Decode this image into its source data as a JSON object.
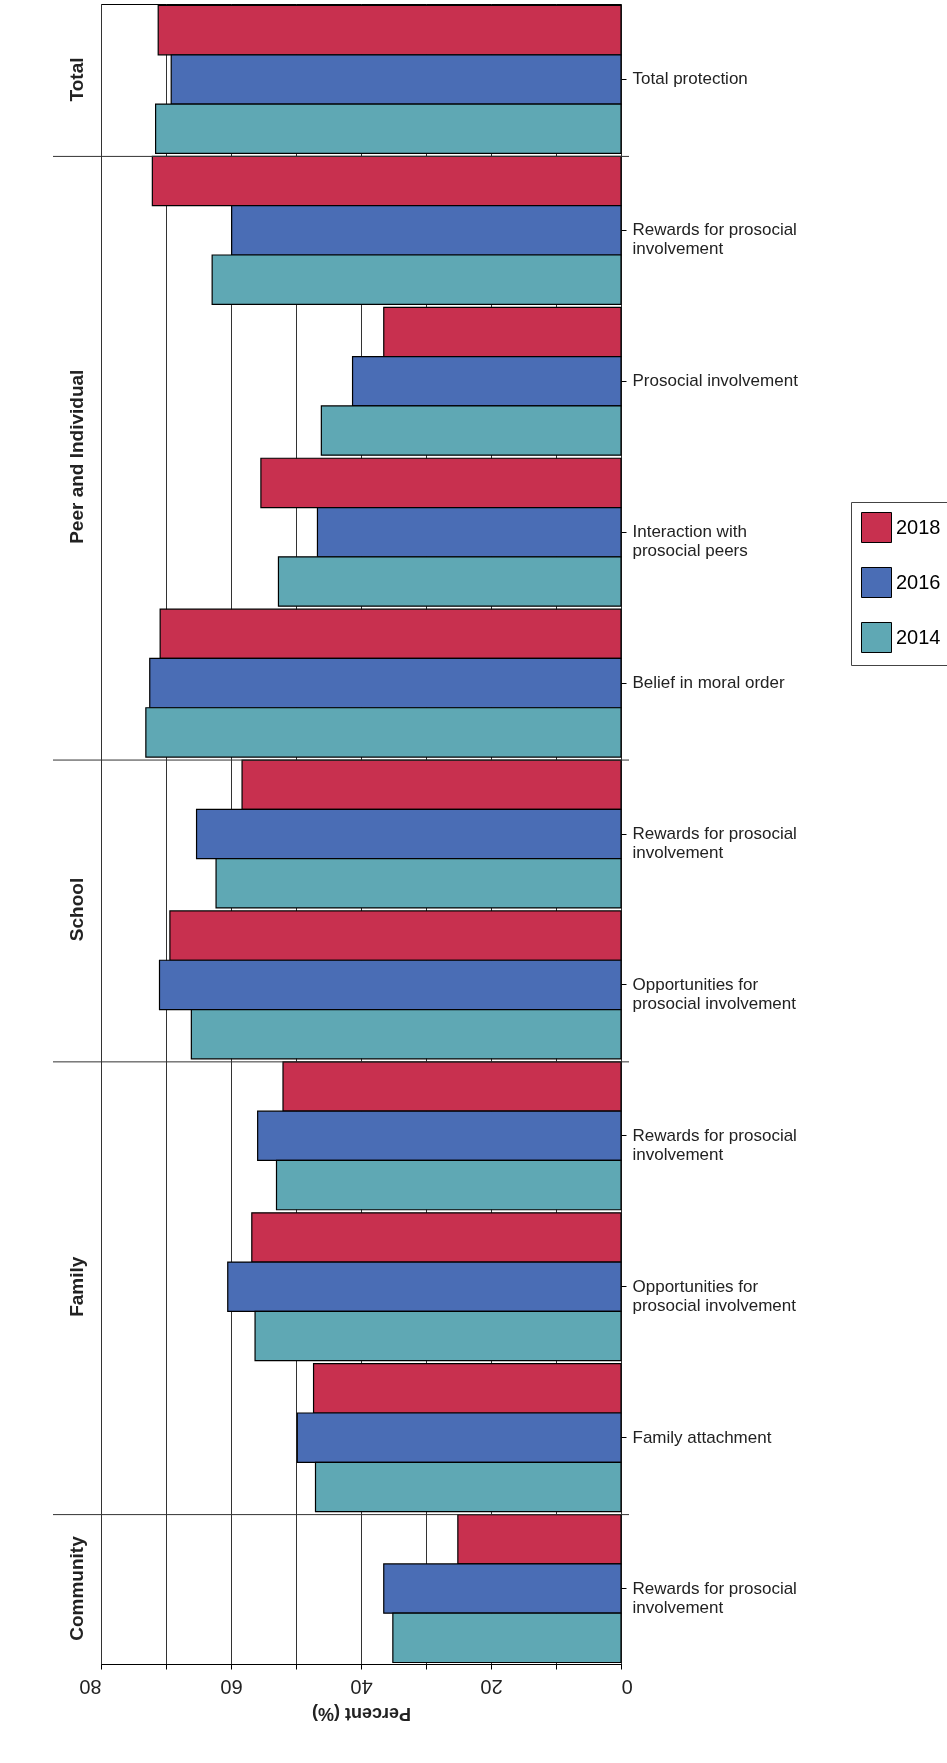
{
  "chart_data": {
    "type": "bar",
    "orientation": "horizontal",
    "xlabel": "Percent (%)",
    "categories": [
      "Total protection",
      "Rewards for prosocial involvement",
      "Prosocial involvement",
      "Interaction with prosocial peers",
      "Belief in moral order",
      "Rewards for prosocial involvement",
      "Opportunities for prosocial involvement",
      "Rewards for prosocial involvement",
      "Opportunities for prosocial involvement",
      "Family attachment",
      "Rewards for prosocial involvement"
    ],
    "series": [
      {
        "name": "2018",
        "color": "#c8304f",
        "values": [
          71.2,
          72.1,
          36.5,
          55.4,
          70.9,
          58.3,
          69.4,
          52.0,
          56.8,
          47.3,
          25.1
        ]
      },
      {
        "name": "2016",
        "color": "#4a6db5",
        "values": [
          69.2,
          59.9,
          41.3,
          46.7,
          72.5,
          65.3,
          71.0,
          55.9,
          60.5,
          49.8,
          36.5
        ]
      },
      {
        "name": "2014",
        "color": "#5fa8b4",
        "values": [
          71.6,
          62.9,
          46.1,
          52.7,
          73.1,
          62.3,
          66.1,
          53.0,
          56.3,
          47.0,
          35.1
        ]
      }
    ],
    "xlim": [
      80,
      0
    ],
    "xticks": [
      0,
      {
        "value": 10,
        "label": null
      },
      20,
      {
        "value": 30,
        "label": null
      },
      40,
      {
        "value": 50,
        "label": null
      },
      60,
      {
        "value": 70,
        "label": null
      },
      80
    ],
    "annotations": [
      "Total",
      "Peer and Individual",
      "School",
      "Family",
      "Community"
    ],
    "grid": "x",
    "legend": "right"
  }
}
